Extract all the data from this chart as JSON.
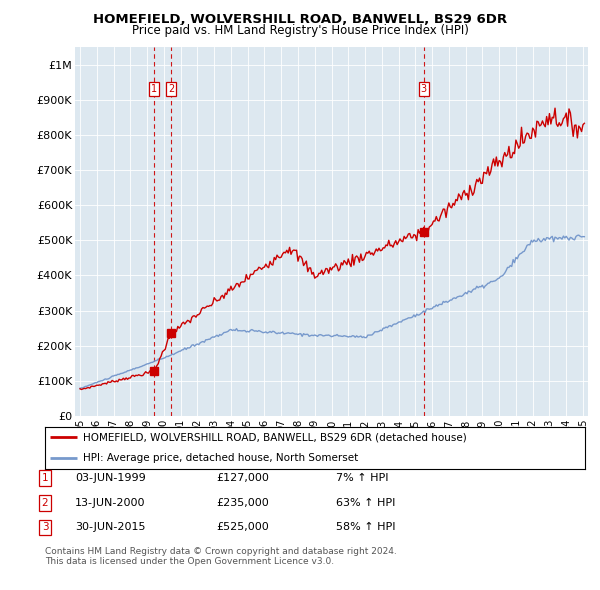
{
  "title": "HOMEFIELD, WOLVERSHILL ROAD, BANWELL, BS29 6DR",
  "subtitle": "Price paid vs. HM Land Registry's House Price Index (HPI)",
  "legend_line1": "HOMEFIELD, WOLVERSHILL ROAD, BANWELL, BS29 6DR (detached house)",
  "legend_line2": "HPI: Average price, detached house, North Somerset",
  "transactions": [
    {
      "num": 1,
      "date": "03-JUN-1999",
      "price": 127000,
      "pct": "7%",
      "dir": "↑",
      "year": 1999.42
    },
    {
      "num": 2,
      "date": "13-JUN-2000",
      "price": 235000,
      "pct": "63%",
      "dir": "↑",
      "year": 2000.45
    },
    {
      "num": 3,
      "date": "30-JUN-2015",
      "price": 525000,
      "pct": "58%",
      "dir": "↑",
      "year": 2015.5
    }
  ],
  "note_line1": "Contains HM Land Registry data © Crown copyright and database right 2024.",
  "note_line2": "This data is licensed under the Open Government Licence v3.0.",
  "red_color": "#cc0000",
  "blue_color": "#7799cc",
  "plot_bg_color": "#dde8f0",
  "background_color": "#ffffff",
  "grid_color": "#ffffff",
  "ylim": [
    0,
    1050000
  ],
  "xlim_start": 1994.7,
  "xlim_end": 2025.3,
  "yticks": [
    0,
    100000,
    200000,
    300000,
    400000,
    500000,
    600000,
    700000,
    800000,
    900000,
    1000000
  ],
  "xticks": [
    1995,
    1996,
    1997,
    1998,
    1999,
    2000,
    2001,
    2002,
    2003,
    2004,
    2005,
    2006,
    2007,
    2008,
    2009,
    2010,
    2011,
    2012,
    2013,
    2014,
    2015,
    2016,
    2017,
    2018,
    2019,
    2020,
    2021,
    2022,
    2023,
    2024,
    2025
  ]
}
